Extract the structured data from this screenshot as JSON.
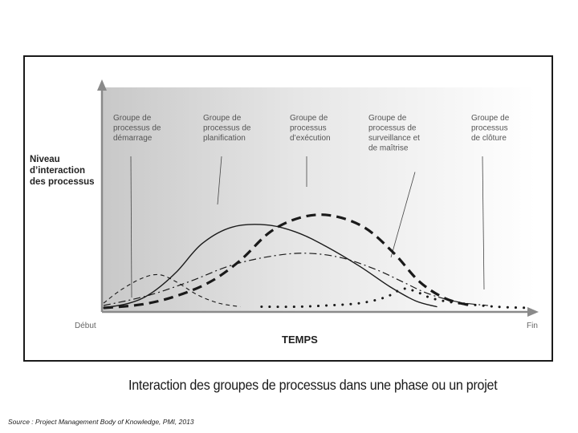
{
  "chart_data": {
    "type": "line",
    "xlabel": "TEMPS",
    "ylabel": [
      "Niveau",
      "d’interaction",
      "des processus"
    ],
    "x_ticks": [
      "Début",
      "Fin"
    ],
    "xlim": [
      0,
      100
    ],
    "ylim": [
      0,
      100
    ],
    "grid": false,
    "series": [
      {
        "name": "démarrage",
        "style": "dashed-thin",
        "points": [
          [
            0,
            4
          ],
          [
            4,
            15
          ],
          [
            9,
            25
          ],
          [
            13,
            28
          ],
          [
            17,
            22
          ],
          [
            22,
            11
          ],
          [
            27,
            4
          ],
          [
            32,
            1
          ]
        ]
      },
      {
        "name": "planification",
        "style": "solid",
        "points": [
          [
            0,
            0
          ],
          [
            6,
            4
          ],
          [
            11,
            12
          ],
          [
            17,
            30
          ],
          [
            23,
            54
          ],
          [
            30,
            68
          ],
          [
            38,
            70
          ],
          [
            45,
            64
          ],
          [
            52,
            52
          ],
          [
            60,
            35
          ],
          [
            67,
            18
          ],
          [
            73,
            6
          ],
          [
            78,
            1
          ]
        ]
      },
      {
        "name": "exécution",
        "style": "dashed-bold",
        "points": [
          [
            0,
            0
          ],
          [
            9,
            3
          ],
          [
            17,
            10
          ],
          [
            25,
            22
          ],
          [
            32,
            40
          ],
          [
            39,
            64
          ],
          [
            46,
            76
          ],
          [
            53,
            78
          ],
          [
            61,
            68
          ],
          [
            68,
            46
          ],
          [
            74,
            22
          ],
          [
            80,
            8
          ],
          [
            86,
            2
          ]
        ]
      },
      {
        "name": "surveillance",
        "style": "dash-dot",
        "points": [
          [
            0,
            2
          ],
          [
            10,
            10
          ],
          [
            20,
            22
          ],
          [
            30,
            36
          ],
          [
            40,
            44
          ],
          [
            48,
            46
          ],
          [
            56,
            42
          ],
          [
            64,
            32
          ],
          [
            70,
            22
          ],
          [
            76,
            12
          ],
          [
            83,
            5
          ],
          [
            90,
            2
          ]
        ]
      },
      {
        "name": "clôture",
        "style": "dotted",
        "points": [
          [
            37,
            1
          ],
          [
            45,
            1
          ],
          [
            52,
            2
          ],
          [
            60,
            4
          ],
          [
            66,
            9
          ],
          [
            70,
            16
          ],
          [
            73,
            14
          ],
          [
            77,
            8
          ],
          [
            83,
            4
          ],
          [
            92,
            1
          ],
          [
            100,
            0
          ]
        ]
      }
    ],
    "annotations": [
      {
        "lines": [
          "Groupe de",
          "processus de",
          "démarrage"
        ],
        "series": "démarrage"
      },
      {
        "lines": [
          "Groupe de",
          "processus de",
          "planification"
        ],
        "series": "planification"
      },
      {
        "lines": [
          "Groupe de",
          "processus",
          "d’exécution"
        ],
        "series": "exécution"
      },
      {
        "lines": [
          "Groupe de",
          "processus de",
          "surveillance et",
          "de maîtrise"
        ],
        "series": "surveillance"
      },
      {
        "lines": [
          "Groupe de",
          "processus",
          "de clôture"
        ],
        "series": "clôture"
      }
    ],
    "caption": "Interaction des groupes de processus dans une phase ou un projet"
  },
  "source": "Source : Project Management Body of Knowledge, PMI, 2013",
  "colors": {
    "ink": "#1a1a1a",
    "label": "#555555",
    "axis": "#8a8a8a"
  }
}
